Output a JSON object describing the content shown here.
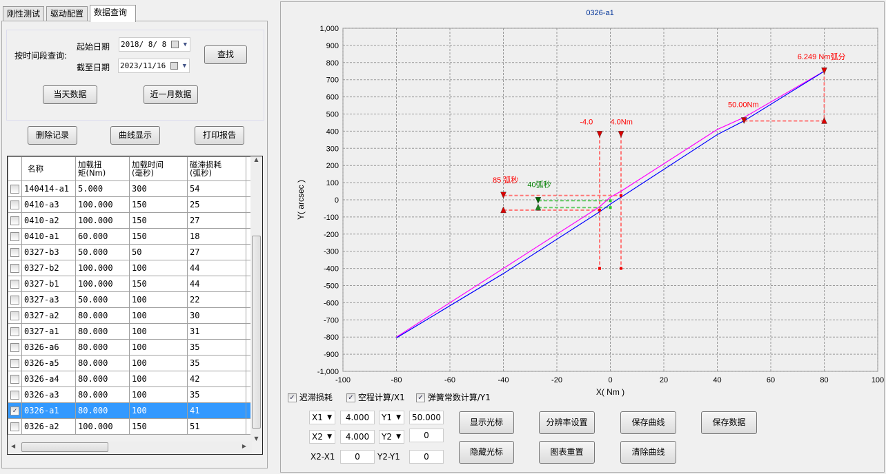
{
  "tabs": [
    {
      "label": "刚性测试"
    },
    {
      "label": "驱动配置"
    },
    {
      "label": "数据查询"
    }
  ],
  "query": {
    "label": "按时间段查询:",
    "start_label": "起始日期",
    "start_value": "2018/ 8/ 8",
    "end_label": "截至日期",
    "end_value": "2023/11/16",
    "find_button": "查找",
    "today_button": "当天数据",
    "month_button": "近一月数据"
  },
  "actions": {
    "delete": "删除记录",
    "show_curve": "曲线显示",
    "print": "打印报告"
  },
  "table": {
    "headers": [
      "名称",
      "加载扭\n矩(Nm)",
      "加载时间\n(毫秒)",
      "磁滞损耗\n(弧秒)"
    ],
    "rows": [
      {
        "checked": false,
        "name": "140414-a1",
        "torque": "5.000",
        "time": "300",
        "loss": "54"
      },
      {
        "checked": false,
        "name": "0410-a3",
        "torque": "100.000",
        "time": "150",
        "loss": "25"
      },
      {
        "checked": false,
        "name": "0410-a2",
        "torque": "100.000",
        "time": "150",
        "loss": "27"
      },
      {
        "checked": false,
        "name": "0410-a1",
        "torque": "60.000",
        "time": "150",
        "loss": "18"
      },
      {
        "checked": false,
        "name": "0327-b3",
        "torque": "50.000",
        "time": "50",
        "loss": "27"
      },
      {
        "checked": false,
        "name": "0327-b2",
        "torque": "100.000",
        "time": "100",
        "loss": "44"
      },
      {
        "checked": false,
        "name": "0327-b1",
        "torque": "100.000",
        "time": "150",
        "loss": "44"
      },
      {
        "checked": false,
        "name": "0327-a3",
        "torque": "50.000",
        "time": "100",
        "loss": "22"
      },
      {
        "checked": false,
        "name": "0327-a2",
        "torque": "80.000",
        "time": "100",
        "loss": "30"
      },
      {
        "checked": false,
        "name": "0327-a1",
        "torque": "80.000",
        "time": "100",
        "loss": "31"
      },
      {
        "checked": false,
        "name": "0326-a6",
        "torque": "80.000",
        "time": "100",
        "loss": "35"
      },
      {
        "checked": false,
        "name": "0326-a5",
        "torque": "80.000",
        "time": "100",
        "loss": "35"
      },
      {
        "checked": false,
        "name": "0326-a4",
        "torque": "80.000",
        "time": "100",
        "loss": "42"
      },
      {
        "checked": false,
        "name": "0326-a3",
        "torque": "80.000",
        "time": "100",
        "loss": "35"
      },
      {
        "checked": true,
        "name": "0326-a1",
        "torque": "80.000",
        "time": "100",
        "loss": "41",
        "selected": true
      },
      {
        "checked": false,
        "name": "0326-a2",
        "torque": "100.000",
        "time": "150",
        "loss": "51"
      }
    ]
  },
  "options": {
    "hysteresis": "迟滞损耗",
    "backlash": "空程计算/X1",
    "spring": "弹簧常数计算/Y1"
  },
  "cursor": {
    "x1_label": "X1",
    "x1_value": "4.000",
    "y1_label": "Y1",
    "y1_value": "50.000",
    "x2_label": "X2",
    "x2_value": "4.000",
    "y2_label": "Y2",
    "y2_value": "0",
    "dx_label": "X2-X1",
    "dx_value": "0",
    "dy_label": "Y2-Y1",
    "dy_value": "0"
  },
  "buttons": {
    "show_cursor": "显示光标",
    "hide_cursor": "隐藏光标",
    "resolution": "分辨率设置",
    "reset_chart": "图表重置",
    "save_curve": "保存曲线",
    "clear_curve": "清除曲线",
    "save_data": "保存数据"
  },
  "chart_data": {
    "type": "line",
    "title": "0326-a1",
    "xlabel": "X( Nm )",
    "ylabel": "Y( arcsec )",
    "xlim": [
      -100,
      100
    ],
    "ylim": [
      -1000,
      1000
    ],
    "xticks": [
      -100,
      -80,
      -60,
      -40,
      -20,
      0,
      20,
      40,
      60,
      80,
      100
    ],
    "yticks": [
      "1,000",
      "900",
      "800",
      "700",
      "600",
      "500",
      "400",
      "300",
      "200",
      "100",
      "0",
      "-100",
      "-200",
      "-300",
      "-400",
      "-500",
      "-600",
      "-700",
      "-800",
      "-900",
      "-1,000"
    ],
    "grid": true,
    "series": [
      {
        "color": "#ff00ff",
        "points": [
          [
            -80,
            -800
          ],
          [
            -40,
            -400
          ],
          [
            -4,
            -40
          ],
          [
            0,
            15
          ],
          [
            4,
            50
          ],
          [
            40,
            410
          ],
          [
            50,
            480
          ],
          [
            80,
            750
          ]
        ]
      },
      {
        "color": "#0000ff",
        "points": [
          [
            -80,
            -805
          ],
          [
            -40,
            -430
          ],
          [
            -4,
            -70
          ],
          [
            0,
            -25
          ],
          [
            4,
            15
          ],
          [
            40,
            380
          ],
          [
            50,
            460
          ],
          [
            78,
            730
          ],
          [
            80,
            750
          ]
        ]
      }
    ],
    "annotations": [
      {
        "text": "-4.0",
        "color": "#ff0000"
      },
      {
        "text": "4.0Nm",
        "color": "#ff0000"
      },
      {
        "text": "85 弧秒",
        "color": "#ff0000"
      },
      {
        "text": "40弧秒",
        "color": "#008000"
      },
      {
        "text": "50.00Nm",
        "color": "#ff0000"
      },
      {
        "text": "6.249 Nm弧分",
        "color": "#ff0000"
      }
    ]
  }
}
